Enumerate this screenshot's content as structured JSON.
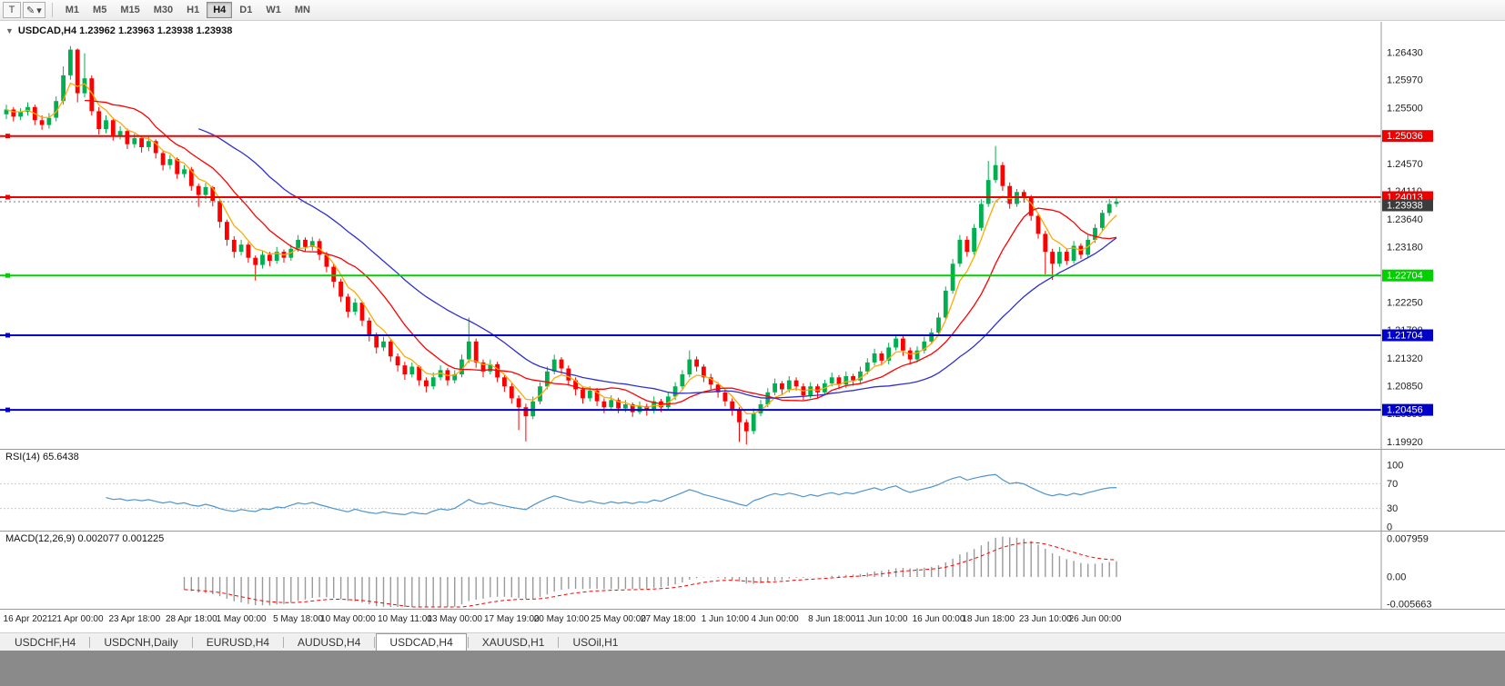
{
  "toolbar": {
    "window_button": "T",
    "draw_button": "✎",
    "dropdown_arrow": "▾",
    "timeframes": [
      "M1",
      "M5",
      "M15",
      "M30",
      "H1",
      "H4",
      "D1",
      "W1",
      "MN"
    ],
    "active_timeframe": "H4"
  },
  "chart": {
    "collapse_icon": "▼",
    "title": "USDCAD,H4 1.23962 1.23963 1.23938 1.23938"
  },
  "indicators": {
    "rsi_label": "RSI(14) 65.6438",
    "macd_label": "MACD(12,26,9) 0.002077 0.001225"
  },
  "tabs": [
    {
      "label": "USDCHF,H4",
      "active": false
    },
    {
      "label": "USDCNH,Daily",
      "active": false
    },
    {
      "label": "EURUSD,H4",
      "active": false
    },
    {
      "label": "AUDUSD,H4",
      "active": false
    },
    {
      "label": "USDCAD,H4",
      "active": true
    },
    {
      "label": "XAUUSD,H1",
      "active": false
    },
    {
      "label": "USOil,H1",
      "active": false
    }
  ],
  "chart_data": {
    "type": "candlestick",
    "symbol": "USDCAD",
    "timeframe": "H4",
    "ylim": [
      1.1982,
      1.269
    ],
    "colors": {
      "up": "#00b050",
      "down": "#ff0000",
      "axis_text": "#222222",
      "grid": "#cccccc"
    },
    "price_ticks": [
      "1.26430",
      "1.25970",
      "1.25500",
      "1.25030",
      "1.24570",
      "1.24110",
      "1.23640",
      "1.23180",
      "1.22710",
      "1.22250",
      "1.21790",
      "1.21320",
      "1.20850",
      "1.20390",
      "1.19920"
    ],
    "hlines": [
      {
        "value": 1.25036,
        "label": "1.25036",
        "color": "#ee0000",
        "width": 2
      },
      {
        "value": 1.24013,
        "label": "1.24013",
        "color": "#ee0000",
        "width": 2
      },
      {
        "value": 1.22704,
        "label": "1.22704",
        "color": "#00d000",
        "width": 2
      },
      {
        "value": 1.21704,
        "label": "1.21704",
        "color": "#0000c8",
        "width": 2
      },
      {
        "value": 1.20456,
        "label": "1.20456",
        "color": "#0000c8",
        "width": 2
      }
    ],
    "current_price": {
      "value": 1.23938,
      "label": "1.23938",
      "box_color": "#3c3c3c"
    },
    "moving_averages": [
      {
        "name": "fast",
        "method": "ema",
        "period": 5,
        "color": "#ffaa00"
      },
      {
        "name": "medium",
        "method": "sma",
        "period": 12,
        "color": "#ff0000"
      },
      {
        "name": "slow",
        "method": "sma",
        "period": 28,
        "color": "#3030d0"
      }
    ],
    "rsi": {
      "period": 14,
      "value": 65.6438,
      "levels": [
        100,
        70,
        30,
        0
      ],
      "color": "#4f94cd"
    },
    "macd": {
      "fast": 12,
      "slow": 26,
      "signal": 9,
      "value": 0.002077,
      "signal_value": 0.001225,
      "axis_labels": [
        "0.007959",
        "0.00",
        "-0.005663"
      ],
      "histogram_color": "#9a9a9a",
      "signal_color": "#ff0000"
    },
    "time_labels": [
      {
        "i": 3,
        "t": "16 Apr 2021"
      },
      {
        "i": 10,
        "t": "21 Apr 00:00"
      },
      {
        "i": 18,
        "t": "23 Apr 18:00"
      },
      {
        "i": 26,
        "t": "28 Apr 18:00"
      },
      {
        "i": 33,
        "t": "1 May 00:00"
      },
      {
        "i": 41,
        "t": "5 May 18:00"
      },
      {
        "i": 48,
        "t": "10 May 00:00"
      },
      {
        "i": 56,
        "t": "10 May 11:00"
      },
      {
        "i": 63,
        "t": "13 May 00:00"
      },
      {
        "i": 71,
        "t": "17 May 19:00"
      },
      {
        "i": 78,
        "t": "20 May 10:00"
      },
      {
        "i": 86,
        "t": "25 May 00:00"
      },
      {
        "i": 93,
        "t": "27 May 18:00"
      },
      {
        "i": 101,
        "t": "1 Jun 10:00"
      },
      {
        "i": 108,
        "t": "4 Jun 00:00"
      },
      {
        "i": 116,
        "t": "8 Jun 18:00"
      },
      {
        "i": 123,
        "t": "11 Jun 10:00"
      },
      {
        "i": 131,
        "t": "16 Jun 00:00"
      },
      {
        "i": 138,
        "t": "18 Jun 18:00"
      },
      {
        "i": 146,
        "t": "23 Jun 10:00"
      },
      {
        "i": 153,
        "t": "26 Jun 00:00"
      }
    ],
    "ohlc": [
      [
        1.254,
        1.2556,
        1.2532,
        1.2548
      ],
      [
        1.2548,
        1.2552,
        1.2528,
        1.2536
      ],
      [
        1.2536,
        1.255,
        1.253,
        1.2544
      ],
      [
        1.2544,
        1.256,
        1.2538,
        1.2552
      ],
      [
        1.2552,
        1.2556,
        1.2522,
        1.253
      ],
      [
        1.253,
        1.2538,
        1.2514,
        1.2522
      ],
      [
        1.2522,
        1.2542,
        1.2516,
        1.2534
      ],
      [
        1.2534,
        1.257,
        1.2528,
        1.2562
      ],
      [
        1.2562,
        1.262,
        1.2556,
        1.2605
      ],
      [
        1.2605,
        1.2654,
        1.2598,
        1.2648
      ],
      [
        1.2648,
        1.265,
        1.256,
        1.2575
      ],
      [
        1.2575,
        1.2642,
        1.2568,
        1.26
      ],
      [
        1.26,
        1.2605,
        1.2538,
        1.2545
      ],
      [
        1.2545,
        1.2552,
        1.2506,
        1.2515
      ],
      [
        1.2515,
        1.2538,
        1.2508,
        1.253
      ],
      [
        1.253,
        1.2534,
        1.2496,
        1.2505
      ],
      [
        1.2505,
        1.252,
        1.2498,
        1.2512
      ],
      [
        1.2512,
        1.2516,
        1.2482,
        1.249
      ],
      [
        1.249,
        1.2508,
        1.2484,
        1.25
      ],
      [
        1.25,
        1.2504,
        1.2476,
        1.2485
      ],
      [
        1.2485,
        1.2502,
        1.2478,
        1.2495
      ],
      [
        1.2495,
        1.2498,
        1.2466,
        1.2475
      ],
      [
        1.2475,
        1.248,
        1.2446,
        1.2455
      ],
      [
        1.2455,
        1.2472,
        1.2448,
        1.2465
      ],
      [
        1.2465,
        1.2468,
        1.2432,
        1.244
      ],
      [
        1.244,
        1.2455,
        1.2434,
        1.2448
      ],
      [
        1.2448,
        1.2452,
        1.2412,
        1.242
      ],
      [
        1.242,
        1.2424,
        1.2385,
        1.2405
      ],
      [
        1.2405,
        1.2425,
        1.2398,
        1.2418
      ],
      [
        1.2418,
        1.242,
        1.2386,
        1.2395
      ],
      [
        1.2395,
        1.2398,
        1.235,
        1.236
      ],
      [
        1.236,
        1.2364,
        1.232,
        1.233
      ],
      [
        1.233,
        1.2336,
        1.23,
        1.231
      ],
      [
        1.231,
        1.233,
        1.2304,
        1.2322
      ],
      [
        1.2322,
        1.2326,
        1.2292,
        1.23
      ],
      [
        1.23,
        1.2304,
        1.2262,
        1.2288
      ],
      [
        1.2288,
        1.2312,
        1.2282,
        1.2305
      ],
      [
        1.2305,
        1.231,
        1.2286,
        1.2295
      ],
      [
        1.2295,
        1.2318,
        1.229,
        1.231
      ],
      [
        1.231,
        1.2314,
        1.2292,
        1.23
      ],
      [
        1.23,
        1.2322,
        1.2295,
        1.2315
      ],
      [
        1.2315,
        1.2338,
        1.231,
        1.233
      ],
      [
        1.233,
        1.2334,
        1.231,
        1.2318
      ],
      [
        1.2318,
        1.2335,
        1.2312,
        1.2328
      ],
      [
        1.2328,
        1.2332,
        1.2296,
        1.2305
      ],
      [
        1.2305,
        1.231,
        1.2276,
        1.2285
      ],
      [
        1.2285,
        1.229,
        1.225,
        1.226
      ],
      [
        1.226,
        1.2265,
        1.2226,
        1.2235
      ],
      [
        1.2235,
        1.224,
        1.22,
        1.221
      ],
      [
        1.221,
        1.2232,
        1.2204,
        1.2225
      ],
      [
        1.2225,
        1.2228,
        1.2186,
        1.2195
      ],
      [
        1.2195,
        1.22,
        1.216,
        1.217
      ],
      [
        1.217,
        1.2175,
        1.214,
        1.215
      ],
      [
        1.215,
        1.2168,
        1.2144,
        1.216
      ],
      [
        1.216,
        1.2164,
        1.2126,
        1.2135
      ],
      [
        1.2135,
        1.214,
        1.211,
        1.212
      ],
      [
        1.212,
        1.2126,
        1.2096,
        1.2105
      ],
      [
        1.2105,
        1.2125,
        1.21,
        1.2118
      ],
      [
        1.2118,
        1.212,
        1.2086,
        1.2095
      ],
      [
        1.2095,
        1.21,
        1.2075,
        1.2085
      ],
      [
        1.2085,
        1.2108,
        1.208,
        1.21
      ],
      [
        1.21,
        1.212,
        1.2095,
        1.2112
      ],
      [
        1.2112,
        1.2116,
        1.2086,
        1.2095
      ],
      [
        1.2095,
        1.2112,
        1.209,
        1.2105
      ],
      [
        1.2105,
        1.2138,
        1.21,
        1.213
      ],
      [
        1.213,
        1.22,
        1.2124,
        1.216
      ],
      [
        1.216,
        1.2165,
        1.2116,
        1.2125
      ],
      [
        1.2125,
        1.213,
        1.21,
        1.211
      ],
      [
        1.211,
        1.213,
        1.2105,
        1.2122
      ],
      [
        1.2122,
        1.2126,
        1.2092,
        1.21
      ],
      [
        1.21,
        1.2105,
        1.2076,
        1.2085
      ],
      [
        1.2085,
        1.209,
        1.2056,
        1.2065
      ],
      [
        1.2065,
        1.207,
        1.2012,
        1.205
      ],
      [
        1.205,
        1.2056,
        1.1993,
        1.2035
      ],
      [
        1.2035,
        1.2068,
        1.203,
        1.206
      ],
      [
        1.206,
        1.2092,
        1.2055,
        1.2085
      ],
      [
        1.2085,
        1.2118,
        1.208,
        1.211
      ],
      [
        1.211,
        1.2138,
        1.2105,
        1.213
      ],
      [
        1.213,
        1.2134,
        1.2106,
        1.2115
      ],
      [
        1.2115,
        1.212,
        1.2086,
        1.2095
      ],
      [
        1.2095,
        1.21,
        1.207,
        1.208
      ],
      [
        1.208,
        1.2085,
        1.2056,
        1.2065
      ],
      [
        1.2065,
        1.2085,
        1.206,
        1.2078
      ],
      [
        1.2078,
        1.2082,
        1.2052,
        1.206
      ],
      [
        1.206,
        1.2065,
        1.204,
        1.205
      ],
      [
        1.205,
        1.207,
        1.2045,
        1.2062
      ],
      [
        1.2062,
        1.2066,
        1.204,
        1.2048
      ],
      [
        1.2048,
        1.2062,
        1.2042,
        1.2055
      ],
      [
        1.2055,
        1.2058,
        1.2034,
        1.2042
      ],
      [
        1.2042,
        1.206,
        1.2038,
        1.2052
      ],
      [
        1.2052,
        1.2056,
        1.2036,
        1.2045
      ],
      [
        1.2045,
        1.2068,
        1.204,
        1.206
      ],
      [
        1.206,
        1.2064,
        1.2042,
        1.205
      ],
      [
        1.205,
        1.2075,
        1.2045,
        1.2068
      ],
      [
        1.2068,
        1.2092,
        1.2062,
        1.2085
      ],
      [
        1.2085,
        1.2112,
        1.208,
        1.2105
      ],
      [
        1.2105,
        1.2145,
        1.21,
        1.213
      ],
      [
        1.213,
        1.2135,
        1.211,
        1.2118
      ],
      [
        1.2118,
        1.2122,
        1.2092,
        1.21
      ],
      [
        1.21,
        1.2106,
        1.208,
        1.2088
      ],
      [
        1.2088,
        1.2092,
        1.2066,
        1.2075
      ],
      [
        1.2075,
        1.208,
        1.2052,
        1.206
      ],
      [
        1.206,
        1.2065,
        1.2036,
        1.2045
      ],
      [
        1.2045,
        1.205,
        1.1992,
        1.2025
      ],
      [
        1.2025,
        1.203,
        1.1988,
        1.201
      ],
      [
        1.201,
        1.2048,
        1.2005,
        1.204
      ],
      [
        1.204,
        1.2062,
        1.2035,
        1.2055
      ],
      [
        1.2055,
        1.2082,
        1.205,
        1.2075
      ],
      [
        1.2075,
        1.2098,
        1.207,
        1.209
      ],
      [
        1.209,
        1.2094,
        1.2072,
        1.208
      ],
      [
        1.208,
        1.2102,
        1.2075,
        1.2095
      ],
      [
        1.2095,
        1.21,
        1.2078,
        1.2085
      ],
      [
        1.2085,
        1.209,
        1.2062,
        1.207
      ],
      [
        1.207,
        1.2092,
        1.2065,
        1.2085
      ],
      [
        1.2085,
        1.2089,
        1.2066,
        1.2075
      ],
      [
        1.2075,
        1.2096,
        1.207,
        1.209
      ],
      [
        1.209,
        1.2108,
        1.2085,
        1.21
      ],
      [
        1.21,
        1.2104,
        1.208,
        1.2088
      ],
      [
        1.2088,
        1.211,
        1.2082,
        1.2102
      ],
      [
        1.2102,
        1.2106,
        1.2086,
        1.2095
      ],
      [
        1.2095,
        1.2118,
        1.209,
        1.211
      ],
      [
        1.211,
        1.2132,
        1.2105,
        1.2125
      ],
      [
        1.2125,
        1.2148,
        1.212,
        1.214
      ],
      [
        1.214,
        1.2144,
        1.212,
        1.2128
      ],
      [
        1.2128,
        1.2158,
        1.2122,
        1.215
      ],
      [
        1.215,
        1.2172,
        1.2145,
        1.2165
      ],
      [
        1.2165,
        1.217,
        1.2136,
        1.2145
      ],
      [
        1.2145,
        1.215,
        1.2122,
        1.213
      ],
      [
        1.213,
        1.2152,
        1.2125,
        1.2145
      ],
      [
        1.2145,
        1.2168,
        1.214,
        1.216
      ],
      [
        1.216,
        1.2182,
        1.2155,
        1.2175
      ],
      [
        1.2175,
        1.2208,
        1.217,
        1.22
      ],
      [
        1.22,
        1.2252,
        1.2195,
        1.2245
      ],
      [
        1.2245,
        1.2298,
        1.224,
        1.229
      ],
      [
        1.229,
        1.2338,
        1.2285,
        1.233
      ],
      [
        1.233,
        1.2336,
        1.2302,
        1.231
      ],
      [
        1.231,
        1.2356,
        1.2305,
        1.235
      ],
      [
        1.235,
        1.2398,
        1.2345,
        1.239
      ],
      [
        1.239,
        1.2462,
        1.2385,
        1.243
      ],
      [
        1.243,
        1.2487,
        1.2425,
        1.2455
      ],
      [
        1.2455,
        1.246,
        1.2412,
        1.242
      ],
      [
        1.242,
        1.2426,
        1.2382,
        1.239
      ],
      [
        1.239,
        1.2415,
        1.2385,
        1.241
      ],
      [
        1.241,
        1.2414,
        1.2392,
        1.24
      ],
      [
        1.24,
        1.2405,
        1.2362,
        1.237
      ],
      [
        1.237,
        1.2375,
        1.2332,
        1.234
      ],
      [
        1.234,
        1.2345,
        1.2272,
        1.231
      ],
      [
        1.231,
        1.2315,
        1.2263,
        1.229
      ],
      [
        1.229,
        1.2318,
        1.2285,
        1.231
      ],
      [
        1.231,
        1.2314,
        1.2288,
        1.2295
      ],
      [
        1.2295,
        1.2328,
        1.229,
        1.232
      ],
      [
        1.232,
        1.2324,
        1.2298,
        1.2305
      ],
      [
        1.2305,
        1.2338,
        1.23,
        1.233
      ],
      [
        1.233,
        1.2356,
        1.2325,
        1.235
      ],
      [
        1.235,
        1.238,
        1.2345,
        1.2375
      ],
      [
        1.2375,
        1.2398,
        1.237,
        1.239
      ],
      [
        1.239,
        1.2402,
        1.2385,
        1.2394
      ]
    ]
  }
}
